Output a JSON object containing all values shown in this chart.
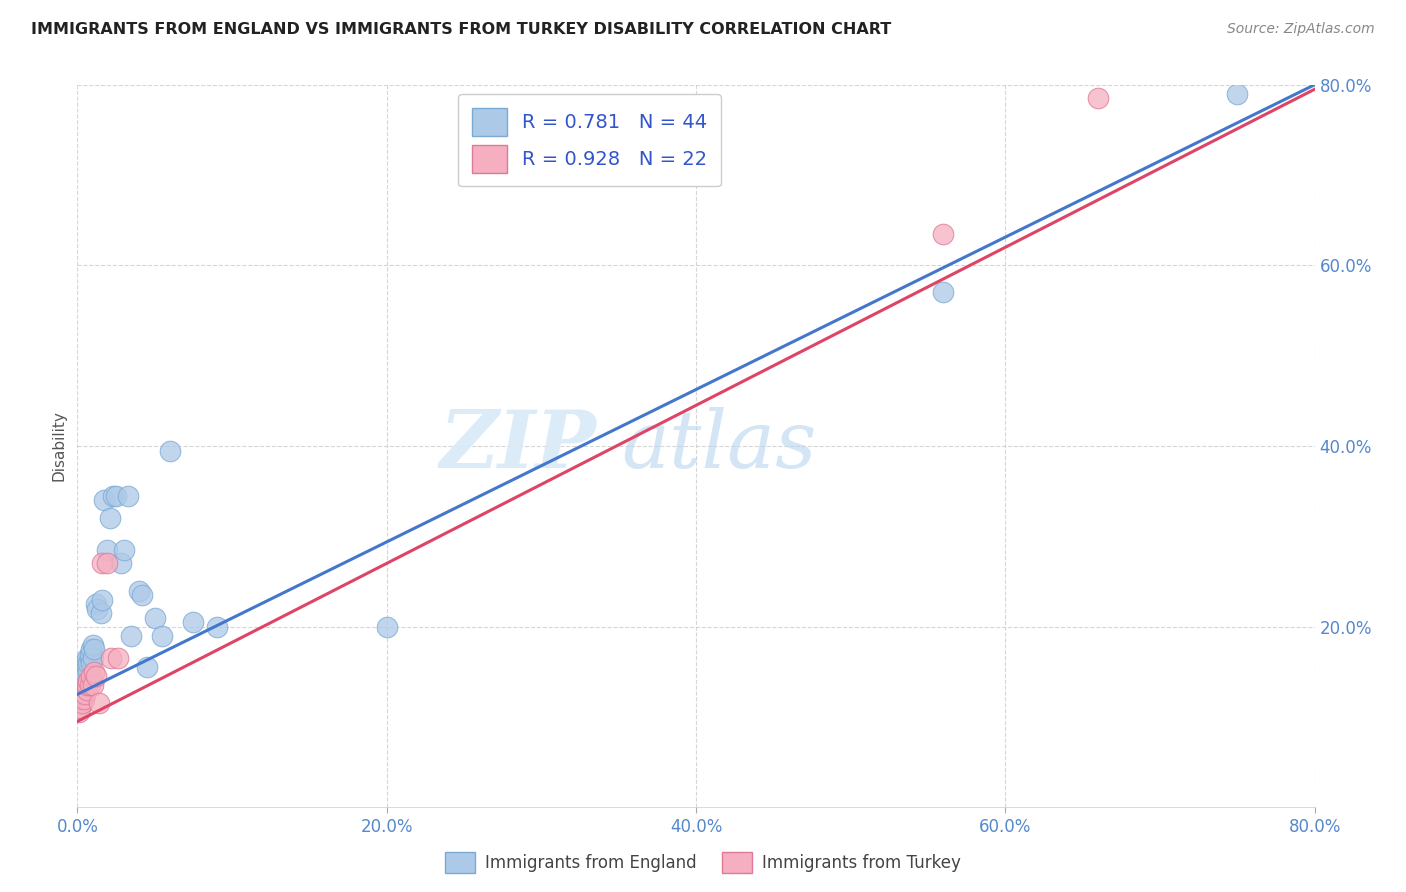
{
  "title": "IMMIGRANTS FROM ENGLAND VS IMMIGRANTS FROM TURKEY DISABILITY CORRELATION CHART",
  "source": "Source: ZipAtlas.com",
  "ylabel": "Disability",
  "xlim": [
    0.0,
    0.8
  ],
  "ylim": [
    0.0,
    0.8
  ],
  "xtick_labels": [
    "0.0%",
    "20.0%",
    "40.0%",
    "60.0%",
    "80.0%"
  ],
  "xtick_vals": [
    0.0,
    0.2,
    0.4,
    0.6,
    0.8
  ],
  "ytick_labels": [
    "20.0%",
    "40.0%",
    "60.0%",
    "80.0%"
  ],
  "ytick_vals": [
    0.2,
    0.4,
    0.6,
    0.8
  ],
  "england_color": "#adc9e8",
  "england_edge_color": "#7aaad4",
  "turkey_color": "#f5afc0",
  "turkey_edge_color": "#e07898",
  "line_england_color": "#4477cc",
  "line_turkey_color": "#dd4466",
  "legend_r_england": "R = 0.781",
  "legend_n_england": "N = 44",
  "legend_r_turkey": "R = 0.928",
  "legend_n_turkey": "N = 22",
  "watermark_zip": "ZIP",
  "watermark_atlas": "atlas",
  "england_x": [
    0.001,
    0.002,
    0.002,
    0.003,
    0.003,
    0.004,
    0.004,
    0.005,
    0.005,
    0.006,
    0.006,
    0.007,
    0.007,
    0.008,
    0.008,
    0.009,
    0.009,
    0.01,
    0.01,
    0.011,
    0.012,
    0.013,
    0.015,
    0.016,
    0.017,
    0.019,
    0.021,
    0.023,
    0.025,
    0.028,
    0.03,
    0.033,
    0.035,
    0.04,
    0.042,
    0.045,
    0.05,
    0.055,
    0.06,
    0.075,
    0.09,
    0.2,
    0.56,
    0.75
  ],
  "england_y": [
    0.135,
    0.13,
    0.145,
    0.14,
    0.15,
    0.145,
    0.155,
    0.15,
    0.16,
    0.155,
    0.165,
    0.15,
    0.16,
    0.165,
    0.17,
    0.16,
    0.175,
    0.165,
    0.18,
    0.175,
    0.225,
    0.22,
    0.215,
    0.23,
    0.34,
    0.285,
    0.32,
    0.345,
    0.345,
    0.27,
    0.285,
    0.345,
    0.19,
    0.24,
    0.235,
    0.155,
    0.21,
    0.19,
    0.395,
    0.205,
    0.2,
    0.2,
    0.57,
    0.79
  ],
  "turkey_x": [
    0.001,
    0.002,
    0.002,
    0.003,
    0.003,
    0.004,
    0.005,
    0.006,
    0.006,
    0.007,
    0.008,
    0.009,
    0.01,
    0.011,
    0.012,
    0.014,
    0.016,
    0.019,
    0.022,
    0.026,
    0.56,
    0.66
  ],
  "turkey_y": [
    0.105,
    0.11,
    0.12,
    0.115,
    0.125,
    0.12,
    0.125,
    0.13,
    0.135,
    0.14,
    0.135,
    0.145,
    0.135,
    0.15,
    0.145,
    0.115,
    0.27,
    0.27,
    0.165,
    0.165,
    0.635,
    0.785
  ],
  "line_eng_x0": 0.0,
  "line_eng_y0": 0.125,
  "line_eng_x1": 0.8,
  "line_eng_y1": 0.8,
  "line_tur_x0": 0.0,
  "line_tur_y0": 0.095,
  "line_tur_x1": 0.8,
  "line_tur_y1": 0.795
}
